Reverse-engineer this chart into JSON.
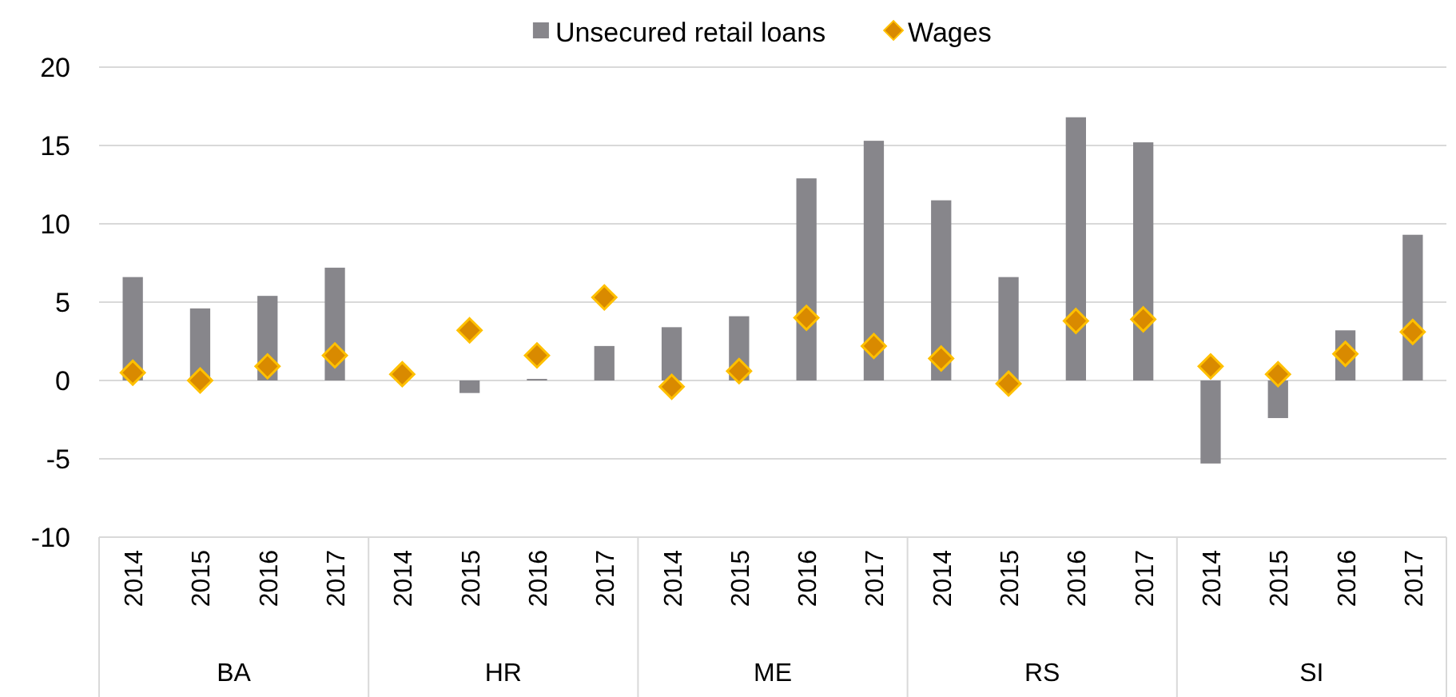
{
  "chart_data": {
    "type": "bar",
    "categories": [
      "2014",
      "2015",
      "2016",
      "2017",
      "2014",
      "2015",
      "2016",
      "2017",
      "2014",
      "2015",
      "2016",
      "2017",
      "2014",
      "2015",
      "2016",
      "2017",
      "2014",
      "2015",
      "2016",
      "2017"
    ],
    "annotations": [
      "BA",
      "HR",
      "ME",
      "RS",
      "SI"
    ],
    "series": [
      {
        "name": "Unsecured retail loans",
        "color": "#87868b",
        "values": [
          6.6,
          4.6,
          5.4,
          7.2,
          null,
          -0.8,
          0.1,
          2.2,
          3.4,
          4.1,
          12.9,
          15.3,
          11.5,
          6.6,
          16.8,
          15.2,
          -5.3,
          -2.4,
          3.2,
          9.3
        ]
      },
      {
        "name": "Wages",
        "type": "scatter",
        "marker": "diamond",
        "color": "#d98a00",
        "values": [
          0.5,
          0,
          0.9,
          1.6,
          0.4,
          3.2,
          1.6,
          5.3,
          -0.4,
          0.6,
          4.0,
          2.2,
          1.4,
          -0.2,
          3.8,
          3.9,
          0.9,
          0.4,
          1.7,
          3.1
        ]
      }
    ],
    "ylim": [
      -10,
      20
    ],
    "yticks": [
      -10,
      -5,
      0,
      5,
      10,
      15,
      20
    ],
    "grid": "y",
    "legend": "top"
  }
}
